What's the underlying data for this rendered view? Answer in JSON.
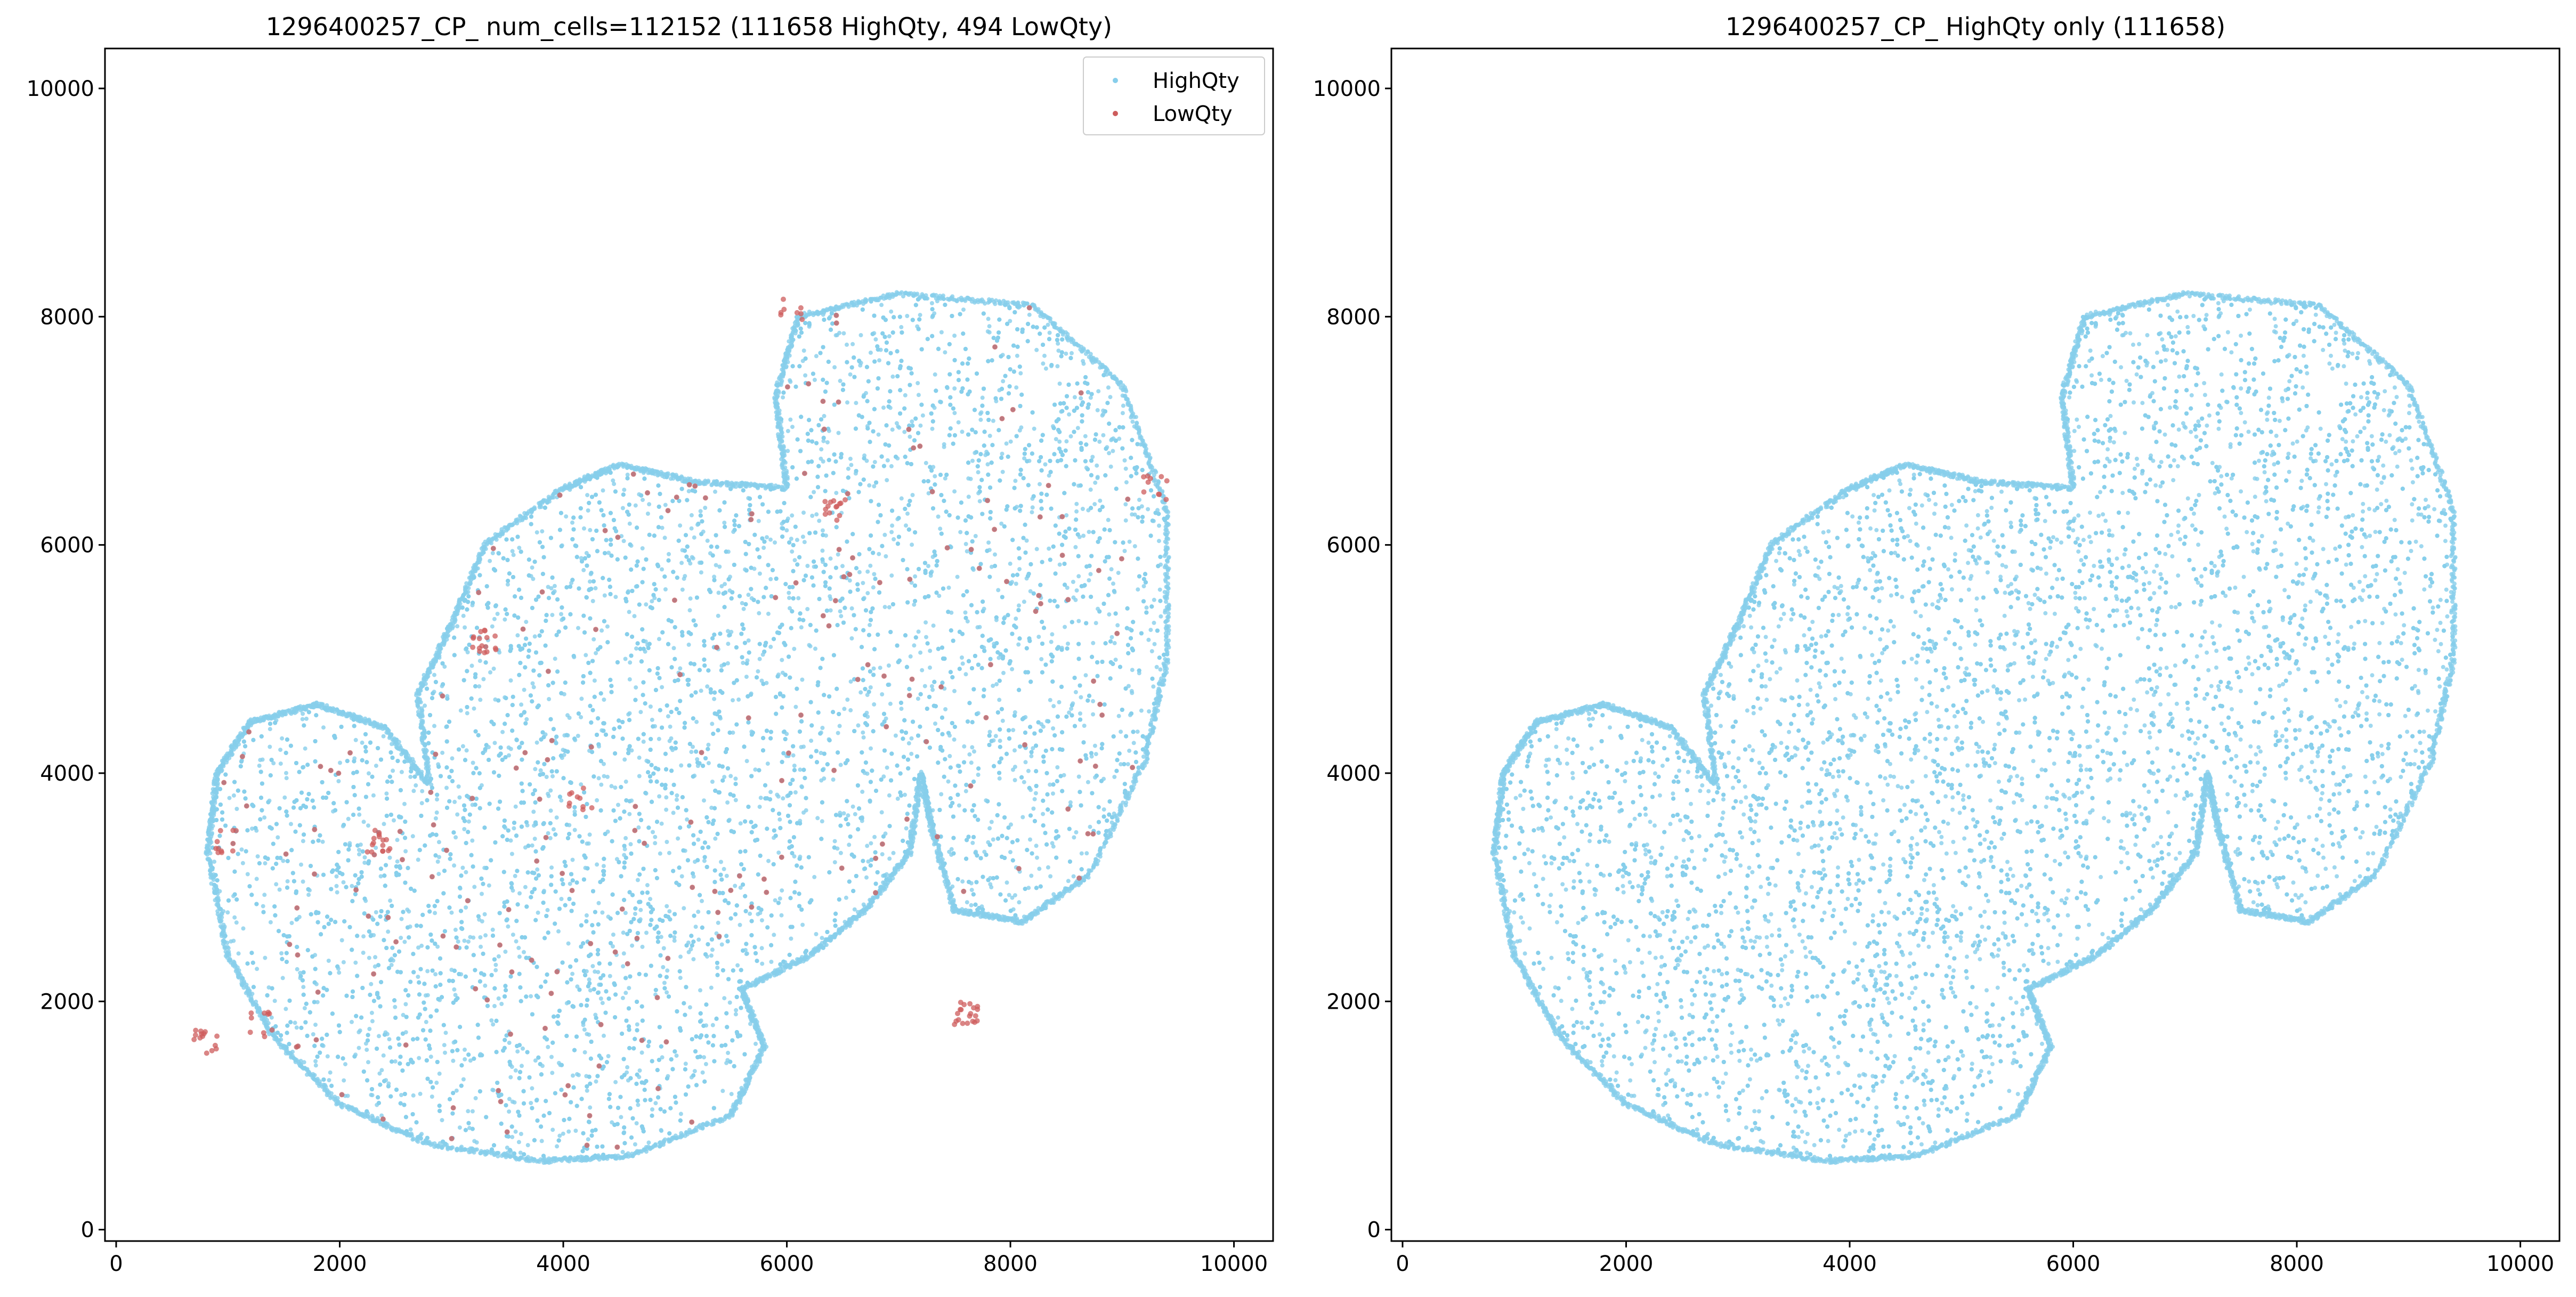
{
  "colors": {
    "high": "#87ceeb",
    "low": "#cd5c5c",
    "axis": "#000000"
  },
  "panels": [
    {
      "title": "1296400257_CP_ num_cells=112152 (111658 HighQty, 494 LowQty)",
      "legend": {
        "placement": "top-right",
        "items": [
          {
            "label": "HighQty",
            "color": "#87ceeb"
          },
          {
            "label": "LowQty",
            "color": "#cd5c5c"
          }
        ]
      }
    },
    {
      "title": "1296400257_CP_ HighQty only (111658)"
    }
  ],
  "chart_data": [
    {
      "type": "scatter",
      "title": "1296400257_CP_ num_cells=112152 (111658 HighQty, 494 LowQty)",
      "xlim": [
        -100,
        10350
      ],
      "ylim": [
        -100,
        10350
      ],
      "xticks": [
        0,
        2000,
        4000,
        6000,
        8000,
        10000
      ],
      "yticks": [
        0,
        2000,
        4000,
        6000,
        8000,
        10000
      ],
      "grid": false,
      "legend": "top-right",
      "series": [
        {
          "name": "HighQty",
          "color": "#87ceeb",
          "count": 111658,
          "tissue_outline": [
            [
              1200,
              4450
            ],
            [
              1800,
              4600
            ],
            [
              2400,
              4400
            ],
            [
              2800,
              3900
            ],
            [
              2700,
              4700
            ],
            [
              3000,
              5300
            ],
            [
              3300,
              6000
            ],
            [
              4000,
              6500
            ],
            [
              4500,
              6700
            ],
            [
              5200,
              6550
            ],
            [
              6000,
              6500
            ],
            [
              5900,
              7300
            ],
            [
              6100,
              8000
            ],
            [
              7000,
              8200
            ],
            [
              8200,
              8100
            ],
            [
              9000,
              7400
            ],
            [
              9400,
              6300
            ],
            [
              9400,
              5000
            ],
            [
              9200,
              4100
            ],
            [
              8700,
              3100
            ],
            [
              8100,
              2700
            ],
            [
              7500,
              2800
            ],
            [
              7300,
              3500
            ],
            [
              7200,
              4000
            ],
            [
              7100,
              3300
            ],
            [
              6700,
              2800
            ],
            [
              6200,
              2400
            ],
            [
              5600,
              2100
            ],
            [
              5800,
              1600
            ],
            [
              5500,
              1000
            ],
            [
              4600,
              650
            ],
            [
              3800,
              600
            ],
            [
              2800,
              750
            ],
            [
              2000,
              1100
            ],
            [
              1400,
              1700
            ],
            [
              1000,
              2400
            ],
            [
              820,
              3300
            ],
            [
              900,
              4000
            ]
          ]
        },
        {
          "name": "LowQty",
          "color": "#cd5c5c",
          "count": 494,
          "clusters": [
            {
              "x": 7600,
              "y": 1900,
              "n": 20
            },
            {
              "x": 3300,
              "y": 5150,
              "n": 16
            },
            {
              "x": 2350,
              "y": 3400,
              "n": 16
            },
            {
              "x": 6420,
              "y": 6300,
              "n": 14
            },
            {
              "x": 4150,
              "y": 3770,
              "n": 10
            },
            {
              "x": 800,
              "y": 1650,
              "n": 14
            },
            {
              "x": 1300,
              "y": 1800,
              "n": 10
            },
            {
              "x": 1000,
              "y": 3400,
              "n": 10
            },
            {
              "x": 6050,
              "y": 8080,
              "n": 8
            },
            {
              "x": 9300,
              "y": 6500,
              "n": 10
            }
          ]
        }
      ]
    },
    {
      "type": "scatter",
      "title": "1296400257_CP_ HighQty only (111658)",
      "xlim": [
        -100,
        10350
      ],
      "ylim": [
        -100,
        10350
      ],
      "xticks": [
        0,
        2000,
        4000,
        6000,
        8000,
        10000
      ],
      "yticks": [
        0,
        2000,
        4000,
        6000,
        8000,
        10000
      ],
      "grid": false,
      "series": [
        {
          "color": "#87ceeb",
          "count": 111658
        }
      ]
    }
  ]
}
